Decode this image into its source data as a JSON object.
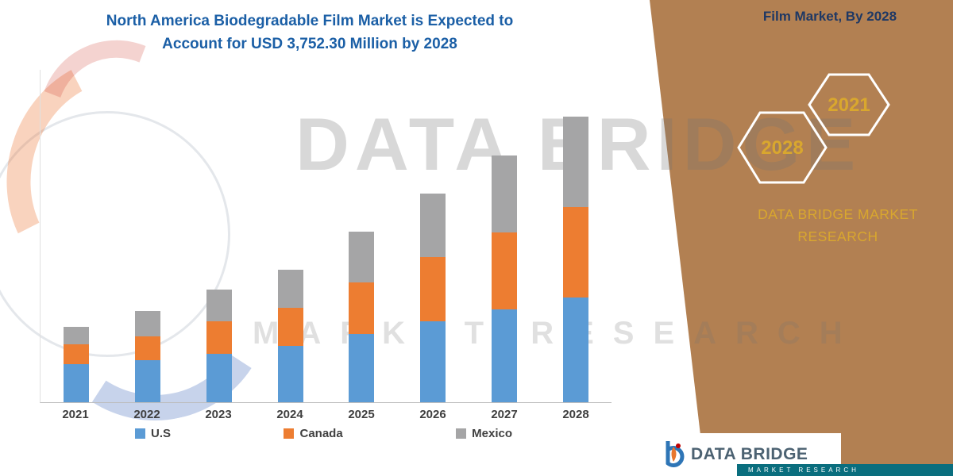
{
  "title": {
    "line1": "North America Biodegradable Film Market is Expected to",
    "line2": "Account for USD 3,752.30 Million by 2028"
  },
  "watermark": {
    "line1": "DATA BRIDGE",
    "line2": "MARKET RESEARCH"
  },
  "chart_data": {
    "type": "bar",
    "stacked": true,
    "title": "North America Biodegradable Film Market is Expected to Account for USD 3,752.30 Million by 2028",
    "unit": "USD Million",
    "categories": [
      "2021",
      "2022",
      "2023",
      "2024",
      "2025",
      "2026",
      "2027",
      "2028"
    ],
    "series": [
      {
        "name": "U.S",
        "color": "#5B9BD5",
        "values": [
          500,
          550,
          640,
          740,
          900,
          1060,
          1220,
          1375
        ]
      },
      {
        "name": "Canada",
        "color": "#ED7D31",
        "values": [
          260,
          320,
          425,
          500,
          680,
          845,
          1010,
          1190
        ]
      },
      {
        "name": "Mexico",
        "color": "#A5A5A6",
        "values": [
          230,
          330,
          415,
          500,
          665,
          835,
          1010,
          1187.3
        ]
      }
    ],
    "ylim": [
      0,
      3752.3
    ],
    "total_2028": 3752.3,
    "legend_position": "bottom",
    "grid": false
  },
  "side_panel": {
    "heading": "Film Market, By 2028",
    "hexagons": [
      {
        "label": "2028"
      },
      {
        "label": "2021"
      }
    ],
    "brand_line1": "DATA BRIDGE MARKET",
    "brand_line2": "RESEARCH",
    "accent_color": "#D9A72E",
    "panel_color": "#B28052"
  },
  "footer": {
    "brand": "DATA BRIDGE",
    "tagline": "MARKET RESEARCH"
  }
}
